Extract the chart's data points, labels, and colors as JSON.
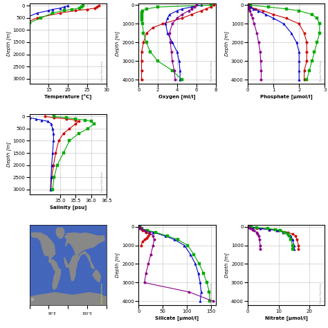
{
  "colors": {
    "red": "#cc0000",
    "blue": "#0000cc",
    "green": "#00aa00",
    "purple": "#880088"
  },
  "oxygen": {
    "depths_red": [
      0,
      100,
      200,
      300,
      500,
      700,
      1000,
      1200,
      1500,
      2000,
      2500,
      3000,
      3500,
      4000
    ],
    "vals_red": [
      7.8,
      7.5,
      7.0,
      6.5,
      5.5,
      4.5,
      2.5,
      1.5,
      0.8,
      0.5,
      0.3,
      0.3,
      0.3,
      0.3
    ],
    "depths_blue": [
      0,
      100,
      200,
      300,
      500,
      700,
      1000,
      1500,
      2000,
      2500,
      3000,
      3500,
      4000
    ],
    "vals_blue": [
      6.5,
      5.5,
      4.5,
      4.0,
      3.2,
      3.0,
      2.8,
      3.0,
      3.5,
      4.0,
      4.2,
      4.3,
      4.3
    ],
    "depths_green": [
      0,
      100,
      200,
      300,
      400,
      500,
      600,
      700,
      800,
      1000,
      1500,
      2000,
      2500,
      3000,
      3500,
      4000
    ],
    "vals_green": [
      7.5,
      2.0,
      0.8,
      0.4,
      0.3,
      0.3,
      0.3,
      0.3,
      0.3,
      0.4,
      0.5,
      0.8,
      1.2,
      2.0,
      3.5,
      4.5
    ],
    "depths_purple": [
      0,
      100,
      200,
      300,
      500,
      700,
      1000,
      1500,
      2000,
      2500,
      3000,
      3500,
      4000
    ],
    "vals_purple": [
      6.0,
      5.8,
      5.5,
      5.2,
      4.5,
      4.0,
      3.5,
      3.2,
      3.3,
      3.4,
      3.5,
      3.7,
      3.8
    ],
    "xlim": [
      0,
      8
    ],
    "ylim": [
      4200,
      -100
    ],
    "xlabel": "Oxygen [ml/l]",
    "ylabel": "Depth [m]",
    "xticks": [
      0,
      2,
      4,
      6,
      8
    ],
    "yticks": [
      0,
      1000,
      2000,
      3000,
      4000
    ]
  },
  "phosphate": {
    "depths_red": [
      0,
      100,
      200,
      300,
      500,
      700,
      1000,
      1500,
      2000,
      2500,
      3000,
      3500,
      4000
    ],
    "vals_red": [
      0.05,
      0.1,
      0.3,
      0.6,
      1.0,
      1.5,
      2.0,
      2.2,
      2.3,
      2.3,
      2.3,
      2.2,
      2.2
    ],
    "depths_blue": [
      0,
      100,
      200,
      300,
      500,
      700,
      1000,
      1500,
      2000,
      2500,
      3000,
      3500,
      4000
    ],
    "vals_blue": [
      0.05,
      0.1,
      0.2,
      0.4,
      0.7,
      1.0,
      1.4,
      1.7,
      1.9,
      2.0,
      2.0,
      2.0,
      2.0
    ],
    "depths_green": [
      0,
      100,
      200,
      300,
      500,
      700,
      1000,
      1500,
      2000,
      2500,
      3000,
      3500,
      4000
    ],
    "vals_green": [
      0.1,
      0.8,
      1.5,
      2.0,
      2.5,
      2.7,
      2.8,
      2.8,
      2.7,
      2.6,
      2.5,
      2.4,
      2.3
    ],
    "depths_purple": [
      0,
      100,
      200,
      300,
      500,
      700,
      1000,
      1500,
      2000,
      2500,
      3000,
      3500,
      4000
    ],
    "vals_purple": [
      0.02,
      0.03,
      0.05,
      0.08,
      0.12,
      0.18,
      0.25,
      0.35,
      0.42,
      0.48,
      0.5,
      0.52,
      0.52
    ],
    "xlim": [
      0,
      3
    ],
    "ylim": [
      4200,
      -100
    ],
    "xlabel": "Phosphate [µmol/l]",
    "ylabel": "Depth [m]",
    "xticks": [
      0,
      1,
      2,
      3
    ],
    "yticks": [
      0,
      1000,
      2000,
      3000,
      4000
    ]
  },
  "silicate": {
    "depths_red": [
      0,
      100,
      200,
      300,
      400,
      500,
      600,
      700,
      800,
      1000
    ],
    "vals_red": [
      2,
      3,
      8,
      15,
      22,
      20,
      16,
      12,
      8,
      5
    ],
    "depths_blue": [
      0,
      100,
      200,
      300,
      500,
      700,
      1000,
      1500,
      2000,
      2500,
      3000,
      3500,
      4000
    ],
    "vals_blue": [
      2,
      5,
      15,
      30,
      55,
      75,
      95,
      108,
      118,
      124,
      128,
      130,
      128
    ],
    "depths_green": [
      0,
      100,
      200,
      300,
      500,
      700,
      1000,
      1500,
      2000,
      2500,
      3000,
      3500,
      4000
    ],
    "vals_green": [
      2,
      6,
      18,
      35,
      60,
      82,
      102,
      115,
      126,
      135,
      142,
      147,
      148
    ],
    "depths_purple": [
      0,
      100,
      200,
      300,
      500,
      700,
      1000,
      1500,
      2000,
      2500,
      3000,
      3500,
      4000
    ],
    "vals_purple": [
      2,
      5,
      12,
      22,
      30,
      32,
      30,
      25,
      20,
      15,
      12,
      105,
      155
    ],
    "xlim": [
      0,
      160
    ],
    "ylim": [
      4200,
      -100
    ],
    "xlabel": "Silicate [µmol/l]",
    "ylabel": "Depth [m]",
    "xticks": [
      0,
      50,
      100,
      150
    ],
    "yticks": [
      0,
      1000,
      2000,
      3000,
      4000
    ]
  },
  "nitrate": {
    "depths_red": [
      0,
      50,
      100,
      150,
      200,
      300,
      400,
      500,
      700,
      1000,
      1200
    ],
    "vals_red": [
      0.5,
      1.0,
      3.0,
      7.0,
      10.0,
      13.0,
      14.5,
      15.5,
      16.0,
      16.5,
      16.5
    ],
    "depths_blue": [
      0,
      50,
      100,
      150,
      200,
      300,
      400,
      500,
      700,
      1000,
      1200
    ],
    "vals_blue": [
      0.5,
      1.5,
      4.0,
      7.0,
      9.5,
      11.5,
      13.0,
      14.0,
      14.5,
      15.0,
      15.0
    ],
    "depths_green": [
      0,
      50,
      100,
      150,
      200,
      300,
      400,
      500,
      700,
      1000,
      1200
    ],
    "vals_green": [
      1.0,
      3.0,
      6.5,
      9.0,
      10.5,
      12.0,
      13.0,
      13.5,
      14.0,
      14.5,
      14.5
    ],
    "depths_purple": [
      0,
      50,
      100,
      150,
      200,
      300,
      400,
      500,
      700,
      1000,
      1200
    ],
    "vals_purple": [
      0.2,
      0.4,
      0.8,
      1.5,
      2.0,
      2.8,
      3.2,
      3.5,
      3.8,
      4.0,
      4.0
    ],
    "xlim": [
      0,
      25
    ],
    "ylim": [
      4200,
      -100
    ],
    "xlabel": "Nitrate [µmol/l]",
    "ylabel": "Depth [m]",
    "xticks": [
      0,
      10,
      20
    ],
    "yticks": [
      0,
      1000,
      2000,
      3000,
      4000
    ]
  },
  "temperature": {
    "depths_red": [
      0,
      50,
      100,
      150,
      200,
      300,
      500,
      700,
      1000,
      1500,
      2000,
      2500,
      3000
    ],
    "vals_red": [
      28,
      27.5,
      27,
      25,
      22,
      18,
      12,
      9,
      7,
      5.5,
      4.8,
      4.2,
      4.0
    ],
    "depths_blue": [
      0,
      50,
      100,
      150,
      200,
      300,
      500,
      700,
      1000,
      1500,
      2000,
      2500,
      3000
    ],
    "vals_blue": [
      20,
      19,
      18,
      16,
      15,
      12,
      9,
      8,
      7,
      6,
      5,
      4.2,
      3.8
    ],
    "depths_green": [
      0,
      50,
      100,
      150,
      200,
      300,
      500,
      700,
      1000,
      1500,
      2000,
      2500,
      3000
    ],
    "vals_green": [
      24,
      23.5,
      23,
      21,
      19,
      16,
      13,
      10,
      8,
      6.5,
      5.5,
      4.8,
      4.2
    ],
    "xlim": [
      10,
      30
    ],
    "ylim": [
      3200,
      -100
    ],
    "xlabel": "Temperature [°C]",
    "ylabel": "Depth [m]",
    "xticks": [
      15,
      20,
      25,
      30
    ],
    "yticks": [
      0,
      500,
      1000,
      1500,
      2000,
      2500,
      3000
    ]
  },
  "salinity": {
    "depths_red": [
      0,
      50,
      100,
      150,
      200,
      300,
      500,
      700,
      1000,
      1500,
      2000,
      2500,
      3000
    ],
    "vals_red": [
      34.5,
      34.8,
      35.2,
      35.5,
      35.6,
      35.5,
      35.3,
      35.1,
      34.95,
      34.85,
      34.78,
      34.72,
      34.7
    ],
    "depths_blue": [
      0,
      50,
      100,
      150,
      200,
      300,
      500,
      700,
      1000,
      1500,
      2000,
      2500,
      3000
    ],
    "vals_blue": [
      33.8,
      34.0,
      34.2,
      34.4,
      34.6,
      34.7,
      34.75,
      34.78,
      34.78,
      34.75,
      34.72,
      34.7,
      34.68
    ],
    "depths_green": [
      0,
      50,
      100,
      150,
      200,
      300,
      500,
      700,
      1000,
      1500,
      2000,
      2500,
      3000
    ],
    "vals_green": [
      34.8,
      35.2,
      35.5,
      35.8,
      36.0,
      36.1,
      35.9,
      35.6,
      35.3,
      35.1,
      34.9,
      34.8,
      34.75
    ],
    "xlim": [
      34,
      36.5
    ],
    "ylim": [
      3200,
      -100
    ],
    "xlabel": "Salinity [psu]",
    "ylabel": "Depth [m]",
    "xticks": [
      35,
      35.5,
      36,
      36.5
    ],
    "yticks": [
      0,
      500,
      1000,
      1500,
      2000,
      2500,
      3000
    ]
  },
  "map": {
    "ocean_color": "#4466bb",
    "land_color": "#888888",
    "xlabels": [
      "0°",
      "90°E",
      "180°E"
    ],
    "bg": "#3355aa"
  },
  "watermark": "Ocean Data View",
  "bg_color": "#ffffff",
  "grid_color": "#bbbbbb"
}
